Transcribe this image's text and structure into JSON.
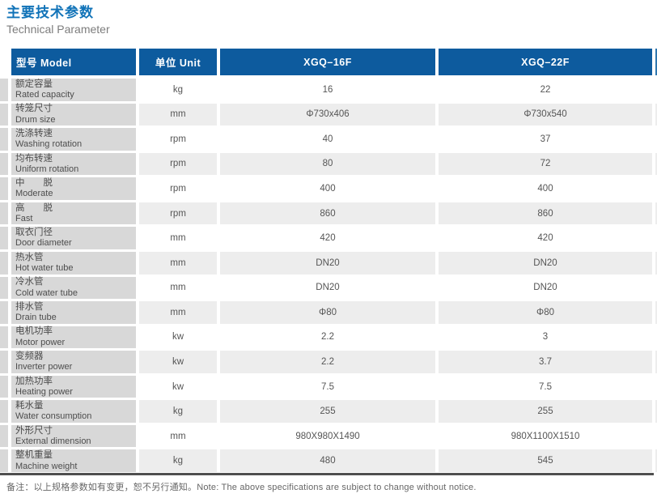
{
  "page": {
    "title_cn": "主要技术参数",
    "title_en": "Technical Parameter",
    "note": "备注：以上规格参数如有变更，恕不另行通知。Note: The above specifications are subject to change without notice."
  },
  "colors": {
    "header_blue": "#0d5b9e",
    "title_blue": "#1173b8",
    "label_gray": "#d8d8d8",
    "alt_row_gray": "#ededed",
    "text_dark": "#4d4d4d",
    "bottom_rule": "#4f4f4f"
  },
  "table": {
    "headers": [
      "型号 Model",
      "单位 Unit",
      "XGQ–16F",
      "XGQ–22F"
    ],
    "rows": [
      {
        "cn": "额定容量",
        "en": "Rated capacity",
        "unit": "kg",
        "xgq16f": "16",
        "xgq22f": "22"
      },
      {
        "cn": "转笼尺寸",
        "en": "Drum size",
        "unit": "mm",
        "xgq16f": "Φ730x406",
        "xgq22f": "Φ730x540"
      },
      {
        "cn": "洗涤转速",
        "en": "Washing rotation",
        "unit": "rpm",
        "xgq16f": "40",
        "xgq22f": "37"
      },
      {
        "cn": "均布转速",
        "en": "Uniform rotation",
        "unit": "rpm",
        "xgq16f": "80",
        "xgq22f": "72"
      },
      {
        "cn": "中　　脱",
        "en": "Moderate",
        "unit": "rpm",
        "xgq16f": "400",
        "xgq22f": "400"
      },
      {
        "cn": "高　　脱",
        "en": "Fast",
        "unit": "rpm",
        "xgq16f": "860",
        "xgq22f": "860"
      },
      {
        "cn": "取衣门径",
        "en": "Door diameter",
        "unit": "mm",
        "xgq16f": "420",
        "xgq22f": "420"
      },
      {
        "cn": "热水管",
        "en": "Hot water tube",
        "unit": "mm",
        "xgq16f": "DN20",
        "xgq22f": "DN20"
      },
      {
        "cn": "冷水管",
        "en": "Cold water tube",
        "unit": "mm",
        "xgq16f": "DN20",
        "xgq22f": "DN20"
      },
      {
        "cn": "排水管",
        "en": "Drain tube",
        "unit": "mm",
        "xgq16f": "Φ80",
        "xgq22f": "Φ80"
      },
      {
        "cn": "电机功率",
        "en": "Motor power",
        "unit": "kw",
        "xgq16f": "2.2",
        "xgq22f": "3"
      },
      {
        "cn": "变频器",
        "en": "Inverter power",
        "unit": "kw",
        "xgq16f": "2.2",
        "xgq22f": "3.7"
      },
      {
        "cn": "加热功率",
        "en": "Heating power",
        "unit": "kw",
        "xgq16f": "7.5",
        "xgq22f": "7.5"
      },
      {
        "cn": "耗水量",
        "en": "Water consumption",
        "unit": "kg",
        "xgq16f": "255",
        "xgq22f": "255"
      },
      {
        "cn": "外形尺寸",
        "en": "External dimension",
        "unit": "mm",
        "xgq16f": "980X980X1490",
        "xgq22f": "980X1100X1510"
      },
      {
        "cn": "整机重量",
        "en": "Machine weight",
        "unit": "kg",
        "xgq16f": "480",
        "xgq22f": "545"
      }
    ]
  }
}
